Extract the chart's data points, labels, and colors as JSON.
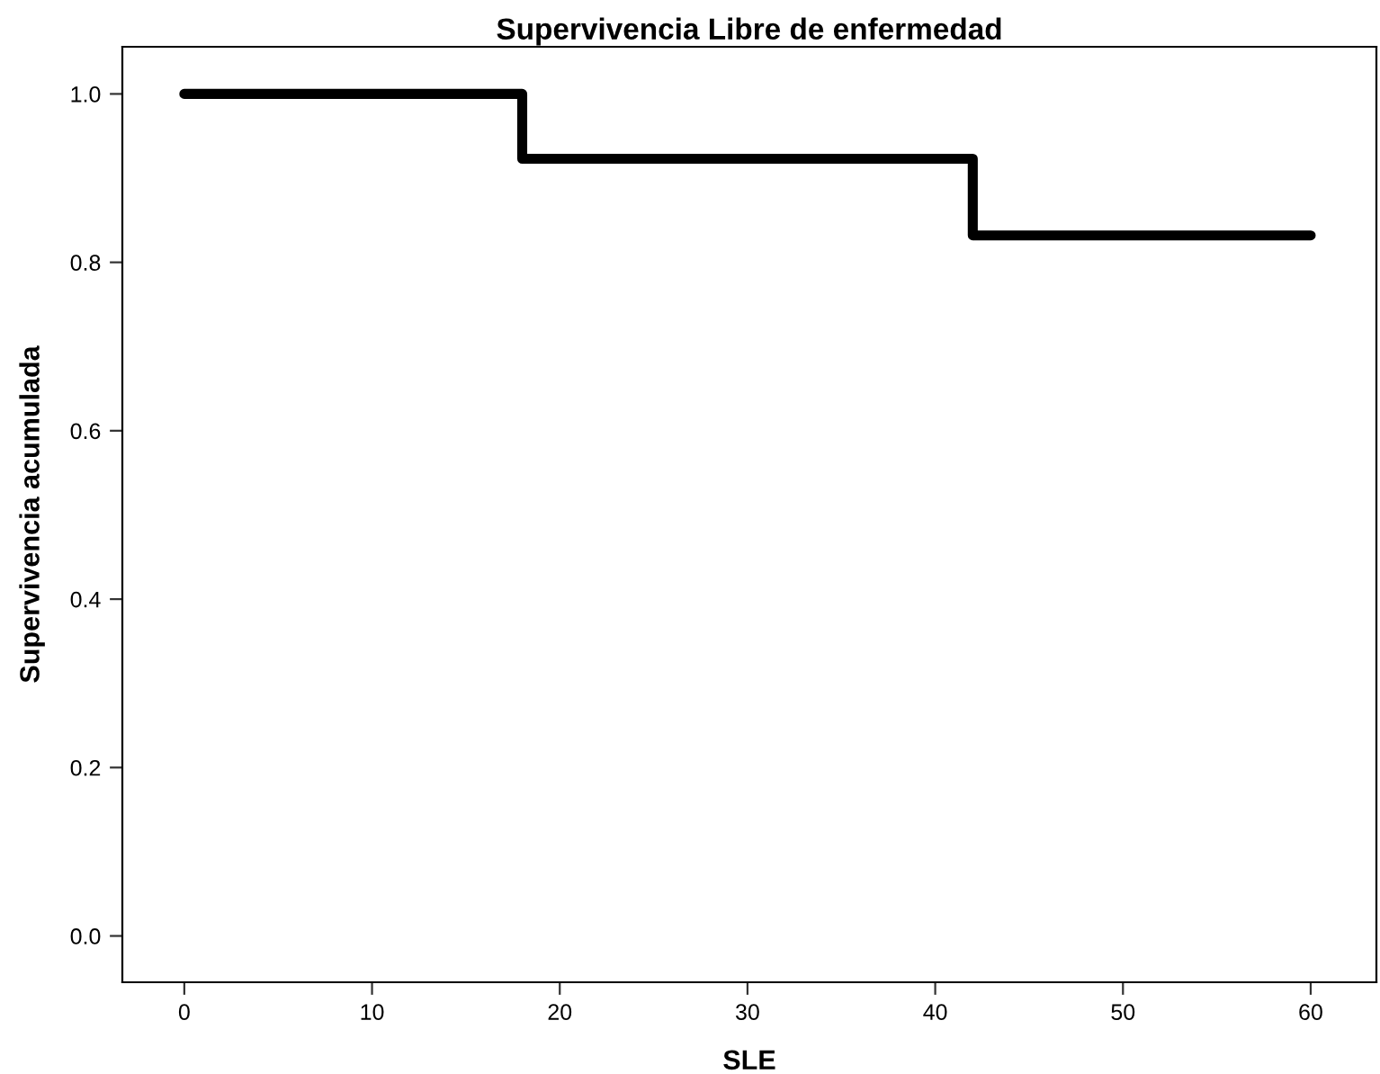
{
  "chart_data": {
    "type": "step",
    "title": "Supervivencia Libre de enfermedad",
    "xlabel": "SLE",
    "ylabel": "Supervivencia acumulada",
    "x": [
      0,
      18,
      42,
      60
    ],
    "series": [
      {
        "color": "#000000",
        "values": [
          1.0,
          0.923,
          0.832,
          0.832
        ]
      }
    ],
    "xlim": [
      -3.3,
      63.5
    ],
    "ylim": [
      -0.055,
      1.056
    ],
    "xticks": [
      0,
      10,
      20,
      30,
      40,
      50,
      60
    ],
    "yticks": [
      {
        "value": 0.0,
        "label": "0.0"
      },
      {
        "value": 0.2,
        "label": "0.2"
      },
      {
        "value": 0.4,
        "label": "0.4"
      },
      {
        "value": 0.6,
        "label": "0.6"
      },
      {
        "value": 0.8,
        "label": "0.8"
      },
      {
        "value": 1.0,
        "label": "1.0"
      }
    ],
    "grid": false,
    "legend": false
  }
}
